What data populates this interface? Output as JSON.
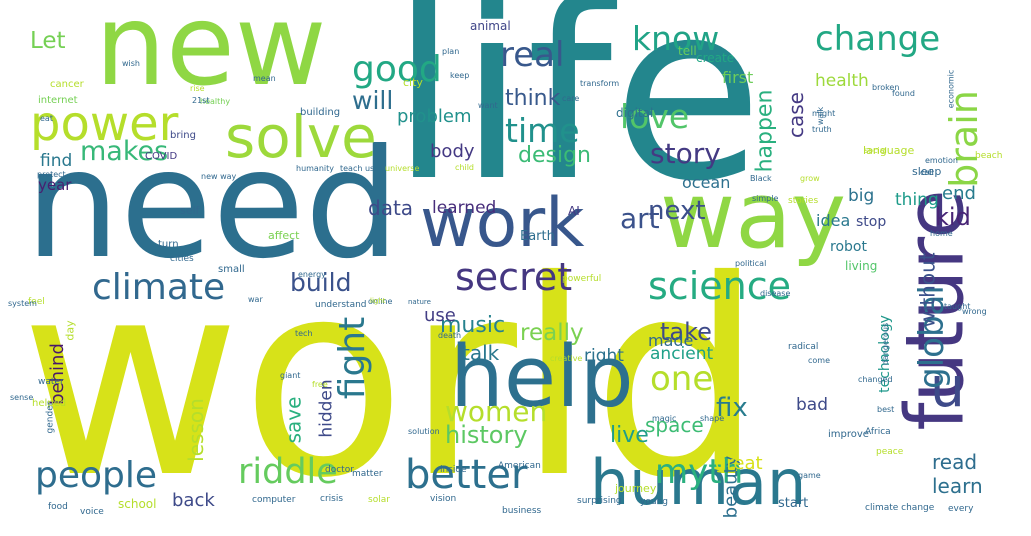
{
  "words": [
    {
      "text": "world",
      "color": "#d7e219",
      "rotated": false
    },
    {
      "text": "life",
      "color": "#23868d",
      "rotated": false
    },
    {
      "text": "need",
      "color": "#2c6f8e",
      "rotated": false
    },
    {
      "text": "new",
      "color": "#8fd744",
      "rotated": false
    },
    {
      "text": "way",
      "color": "#8fd744",
      "rotated": false
    },
    {
      "text": "work",
      "color": "#38578c",
      "rotated": false
    },
    {
      "text": "future",
      "color": "#453781",
      "rotated": true
    },
    {
      "text": "help",
      "color": "#2d708e",
      "rotated": false
    },
    {
      "text": "human",
      "color": "#2a788e",
      "rotated": false
    },
    {
      "text": "solve",
      "color": "#9dd93b",
      "rotated": false
    },
    {
      "text": "power",
      "color": "#b5de2b",
      "rotated": false
    },
    {
      "text": "secret",
      "color": "#453781",
      "rotated": false
    },
    {
      "text": "climate",
      "color": "#31688e",
      "rotated": false
    },
    {
      "text": "people",
      "color": "#2e6d8e",
      "rotated": false
    },
    {
      "text": "better",
      "color": "#2d708e",
      "rotated": false
    },
    {
      "text": "riddle",
      "color": "#65cb5e",
      "rotated": false
    },
    {
      "text": "myth",
      "color": "#2ab07f",
      "rotated": false
    },
    {
      "text": "u",
      "color": "#3e4a89",
      "rotated": false
    },
    {
      "text": "global",
      "color": "#2d708e",
      "rotated": true
    },
    {
      "text": "brain",
      "color": "#8bd646",
      "rotated": true
    },
    {
      "text": "science",
      "color": "#25ab82",
      "rotated": false
    },
    {
      "text": "fight",
      "color": "#2a788e",
      "rotated": true
    },
    {
      "text": "one",
      "color": "#b5de2b",
      "rotated": false
    },
    {
      "text": "women",
      "color": "#b5de2b",
      "rotated": false
    },
    {
      "text": "art",
      "color": "#3b528b",
      "rotated": false
    },
    {
      "text": "good",
      "color": "#22a884",
      "rotated": false
    },
    {
      "text": "real",
      "color": "#38588c",
      "rotated": false
    },
    {
      "text": "time",
      "color": "#21918c",
      "rotated": false
    },
    {
      "text": "love",
      "color": "#52c569",
      "rotated": false
    },
    {
      "text": "change",
      "color": "#22a884",
      "rotated": false
    },
    {
      "text": "know",
      "color": "#20a386",
      "rotated": false
    },
    {
      "text": "history",
      "color": "#5cc863",
      "rotated": false
    },
    {
      "text": "story",
      "color": "#443a83",
      "rotated": false
    },
    {
      "text": "build",
      "color": "#3b528b",
      "rotated": false
    },
    {
      "text": "makes",
      "color": "#37b878",
      "rotated": false
    },
    {
      "text": "will",
      "color": "#2e6e8e",
      "rotated": false
    },
    {
      "text": "design",
      "color": "#3bbb75",
      "rotated": false
    },
    {
      "text": "think",
      "color": "#38598c",
      "rotated": false
    },
    {
      "text": "Let",
      "color": "#75d054",
      "rotated": false
    },
    {
      "text": "data",
      "color": "#3e4a89",
      "rotated": false
    },
    {
      "text": "next",
      "color": "#3c4f8a",
      "rotated": false
    },
    {
      "text": "learned",
      "color": "#472d7b",
      "rotated": false
    },
    {
      "text": "really",
      "color": "#7ad151",
      "rotated": false
    },
    {
      "text": "music",
      "color": "#26828e",
      "rotated": false
    },
    {
      "text": "take",
      "color": "#3e4a89",
      "rotated": false
    },
    {
      "text": "talk",
      "color": "#2a788e",
      "rotated": false
    },
    {
      "text": "fix",
      "color": "#287c8e",
      "rotated": false
    },
    {
      "text": "space",
      "color": "#3dbc74",
      "rotated": false
    },
    {
      "text": "live",
      "color": "#1f9e89",
      "rotated": false
    },
    {
      "text": "read",
      "color": "#2e6d8e",
      "rotated": false
    },
    {
      "text": "learn",
      "color": "#2d708e",
      "rotated": false
    },
    {
      "text": "end",
      "color": "#287c8e",
      "rotated": false
    },
    {
      "text": "kid",
      "color": "#482576",
      "rotated": false
    },
    {
      "text": "look",
      "color": "#3b528b",
      "rotated": true
    },
    {
      "text": "behind",
      "color": "#48186a",
      "rotated": true
    },
    {
      "text": "lesson",
      "color": "#b5de2b",
      "rotated": true
    },
    {
      "text": "save",
      "color": "#2ab07f",
      "rotated": true
    },
    {
      "text": "hidden",
      "color": "#3e4a89",
      "rotated": true
    },
    {
      "text": "without",
      "color": "#3b528b",
      "rotated": true
    },
    {
      "text": "happen",
      "color": "#2ab07f",
      "rotated": true
    },
    {
      "text": "case",
      "color": "#443983",
      "rotated": true
    },
    {
      "text": "beauty",
      "color": "#2d708e",
      "rotated": true
    },
    {
      "text": "great",
      "color": "#d8e219",
      "rotated": false
    },
    {
      "text": "back",
      "color": "#3e4a89",
      "rotated": false
    },
    {
      "text": "ocean",
      "color": "#2d708e",
      "rotated": false
    },
    {
      "text": "problem",
      "color": "#21918c",
      "rotated": false
    },
    {
      "text": "body",
      "color": "#443983",
      "rotated": false
    },
    {
      "text": "find",
      "color": "#2a788e",
      "rotated": false
    },
    {
      "text": "year",
      "color": "#481f70",
      "rotated": false
    },
    {
      "text": "use",
      "color": "#433e85",
      "rotated": false
    },
    {
      "text": "right",
      "color": "#2c728e",
      "rotated": false
    },
    {
      "text": "made",
      "color": "#306a8e",
      "rotated": false
    },
    {
      "text": "ancient",
      "color": "#1fa088",
      "rotated": false
    },
    {
      "text": "bad",
      "color": "#3e4a89",
      "rotated": false
    },
    {
      "text": "thing",
      "color": "#1e9b8a",
      "rotated": false
    },
    {
      "text": "big",
      "color": "#2c728e",
      "rotated": false
    },
    {
      "text": "idea",
      "color": "#2a788e",
      "rotated": false
    },
    {
      "text": "health",
      "color": "#9dd93b",
      "rotated": false
    },
    {
      "text": "first",
      "color": "#6ccd5a",
      "rotated": false
    },
    {
      "text": "AI",
      "color": "#443983",
      "rotated": false
    },
    {
      "text": "Earth",
      "color": "#2e6d8e",
      "rotated": false
    },
    {
      "text": "stop",
      "color": "#3e4a89",
      "rotated": false
    },
    {
      "text": "robot",
      "color": "#2a788e",
      "rotated": false
    },
    {
      "text": "living",
      "color": "#52c569",
      "rotated": false
    },
    {
      "text": "technology",
      "color": "#1f988b",
      "rotated": true
    },
    {
      "text": "animal",
      "color": "#404688",
      "rotated": false
    },
    {
      "text": "city",
      "color": "#b5de2b",
      "rotated": false
    },
    {
      "text": "create",
      "color": "#22a884",
      "rotated": false
    },
    {
      "text": "tell",
      "color": "#65cb5e",
      "rotated": false
    },
    {
      "text": "digital",
      "color": "#2d708e",
      "rotated": false
    },
    {
      "text": "COVID",
      "color": "#443983",
      "rotated": false
    },
    {
      "text": "bring",
      "color": "#3e4a89",
      "rotated": false
    },
    {
      "text": "self",
      "color": "#31688e",
      "rotated": false
    },
    {
      "text": "affect",
      "color": "#7ad151",
      "rotated": false
    },
    {
      "text": "day",
      "color": "#b5de2b",
      "rotated": true
    },
    {
      "text": "language",
      "color": "#b5de2b",
      "rotated": false
    },
    {
      "text": "school",
      "color": "#b5de2b",
      "rotated": false
    },
    {
      "text": "start",
      "color": "#31688e",
      "rotated": false
    },
    {
      "text": "sleep",
      "color": "#31688e",
      "rotated": false
    },
    {
      "text": "cancer",
      "color": "#b5de2b",
      "rotated": false
    },
    {
      "text": "internet",
      "color": "#75d054",
      "rotated": false
    },
    {
      "text": "building",
      "color": "#31688e",
      "rotated": false
    },
    {
      "text": "healthy",
      "color": "#75d054",
      "rotated": false
    },
    {
      "text": "humanity",
      "color": "#31688e",
      "rotated": false
    },
    {
      "text": "teach us",
      "color": "#31688e",
      "rotated": false
    },
    {
      "text": "new way",
      "color": "#31688e",
      "rotated": false
    },
    {
      "text": "universe",
      "color": "#b5de2b",
      "rotated": false
    },
    {
      "text": "small",
      "color": "#31688e",
      "rotated": false
    },
    {
      "text": "energy",
      "color": "#31688e",
      "rotated": false
    },
    {
      "text": "powerful",
      "color": "#b5de2b",
      "rotated": false
    },
    {
      "text": "political",
      "color": "#31688e",
      "rotated": false
    },
    {
      "text": "disease",
      "color": "#31688e",
      "rotated": false
    },
    {
      "text": "online",
      "color": "#31688e",
      "rotated": false
    },
    {
      "text": "light",
      "color": "#b5de2b",
      "rotated": false
    },
    {
      "text": "nature",
      "color": "#31688e",
      "rotated": false
    },
    {
      "text": "understand",
      "color": "#31688e",
      "rotated": false
    },
    {
      "text": "turn",
      "color": "#31688e",
      "rotated": false
    },
    {
      "text": "feel",
      "color": "#b5de2b",
      "rotated": false
    },
    {
      "text": "system",
      "color": "#31688e",
      "rotated": false
    },
    {
      "text": "cities",
      "color": "#31688e",
      "rotated": false
    },
    {
      "text": "death",
      "color": "#31688e",
      "rotated": false
    },
    {
      "text": "creative",
      "color": "#b5de2b",
      "rotated": false
    },
    {
      "text": "tech",
      "color": "#31688e",
      "rotated": false
    },
    {
      "text": "giant",
      "color": "#31688e",
      "rotated": false
    },
    {
      "text": "free",
      "color": "#b5de2b",
      "rotated": false
    },
    {
      "text": "radical",
      "color": "#31688e",
      "rotated": false
    },
    {
      "text": "come",
      "color": "#31688e",
      "rotated": false
    },
    {
      "text": "dangerous",
      "color": "#31688e",
      "rotated": true
    },
    {
      "text": "changed",
      "color": "#31688e",
      "rotated": false
    },
    {
      "text": "water",
      "color": "#31688e",
      "rotated": false
    },
    {
      "text": "helped",
      "color": "#b5de2b",
      "rotated": false
    },
    {
      "text": "solution",
      "color": "#31688e",
      "rotated": false
    },
    {
      "text": "matter",
      "color": "#31688e",
      "rotated": false
    },
    {
      "text": "doctor",
      "color": "#31688e",
      "rotated": false
    },
    {
      "text": "inside",
      "color": "#31688e",
      "rotated": false
    },
    {
      "text": "American",
      "color": "#31688e",
      "rotated": false
    },
    {
      "text": "journey",
      "color": "#b5de2b",
      "rotated": false
    },
    {
      "text": "vision",
      "color": "#31688e",
      "rotated": false
    },
    {
      "text": "Africa",
      "color": "#31688e",
      "rotated": false
    },
    {
      "text": "peace",
      "color": "#b5de2b",
      "rotated": false
    },
    {
      "text": "improve",
      "color": "#31688e",
      "rotated": false
    },
    {
      "text": "magic",
      "color": "#31688e",
      "rotated": false
    },
    {
      "text": "shape",
      "color": "#31688e",
      "rotated": false
    },
    {
      "text": "food",
      "color": "#31688e",
      "rotated": false
    },
    {
      "text": "voice",
      "color": "#31688e",
      "rotated": false
    },
    {
      "text": "computer",
      "color": "#31688e",
      "rotated": false
    },
    {
      "text": "crisis",
      "color": "#31688e",
      "rotated": false
    },
    {
      "text": "solar",
      "color": "#b5de2b",
      "rotated": false
    },
    {
      "text": "business",
      "color": "#31688e",
      "rotated": false
    },
    {
      "text": "surprising",
      "color": "#31688e",
      "rotated": false
    },
    {
      "text": "young",
      "color": "#31688e",
      "rotated": false
    },
    {
      "text": "climate change",
      "color": "#31688e",
      "rotated": false
    },
    {
      "text": "every",
      "color": "#31688e",
      "rotated": false
    },
    {
      "text": "wish",
      "color": "#31688e",
      "rotated": false
    },
    {
      "text": "rise",
      "color": "#b5de2b",
      "rotated": false
    },
    {
      "text": "21st",
      "color": "#31688e",
      "rotated": false
    },
    {
      "text": "eat",
      "color": "#31688e",
      "rotated": false
    },
    {
      "text": "Black",
      "color": "#31688e",
      "rotated": false
    },
    {
      "text": "simple",
      "color": "#31688e",
      "rotated": false
    },
    {
      "text": "social",
      "color": "#b5de2b",
      "rotated": false
    },
    {
      "text": "emotion",
      "color": "#31688e",
      "rotated": false
    },
    {
      "text": "call",
      "color": "#31688e",
      "rotated": false
    },
    {
      "text": "truth",
      "color": "#31688e",
      "rotated": false
    },
    {
      "text": "might",
      "color": "#31688e",
      "rotated": false
    },
    {
      "text": "grow",
      "color": "#b5de2b",
      "rotated": false
    },
    {
      "text": "transform",
      "color": "#31688e",
      "rotated": false
    },
    {
      "text": "plan",
      "color": "#31688e",
      "rotated": false
    },
    {
      "text": "keep",
      "color": "#31688e",
      "rotated": false
    },
    {
      "text": "broken",
      "color": "#31688e",
      "rotated": false
    },
    {
      "text": "found",
      "color": "#31688e",
      "rotated": false
    },
    {
      "text": "economic",
      "color": "#31688e",
      "rotated": true
    },
    {
      "text": "walk",
      "color": "#31688e",
      "rotated": true
    },
    {
      "text": "beach",
      "color": "#b5de2b",
      "rotated": false
    },
    {
      "text": "mean",
      "color": "#31688e",
      "rotated": false
    },
    {
      "text": "care",
      "color": "#31688e",
      "rotated": false
    },
    {
      "text": "want",
      "color": "#31688e",
      "rotated": false
    },
    {
      "text": "child",
      "color": "#b5de2b",
      "rotated": false
    },
    {
      "text": "protect",
      "color": "#31688e",
      "rotated": false
    },
    {
      "text": "sense",
      "color": "#31688e",
      "rotated": false
    },
    {
      "text": "gender",
      "color": "#31688e",
      "rotated": true
    },
    {
      "text": "war",
      "color": "#31688e",
      "rotated": false
    },
    {
      "text": "game",
      "color": "#31688e",
      "rotated": false
    },
    {
      "text": "best",
      "color": "#31688e",
      "rotated": false
    },
    {
      "text": "home",
      "color": "#31688e",
      "rotated": false
    },
    {
      "text": "taught",
      "color": "#31688e",
      "rotated": false
    },
    {
      "text": "stories",
      "color": "#b5de2b",
      "rotated": false
    },
    {
      "text": "wrong",
      "color": "#31688e",
      "rotated": false
    }
  ]
}
